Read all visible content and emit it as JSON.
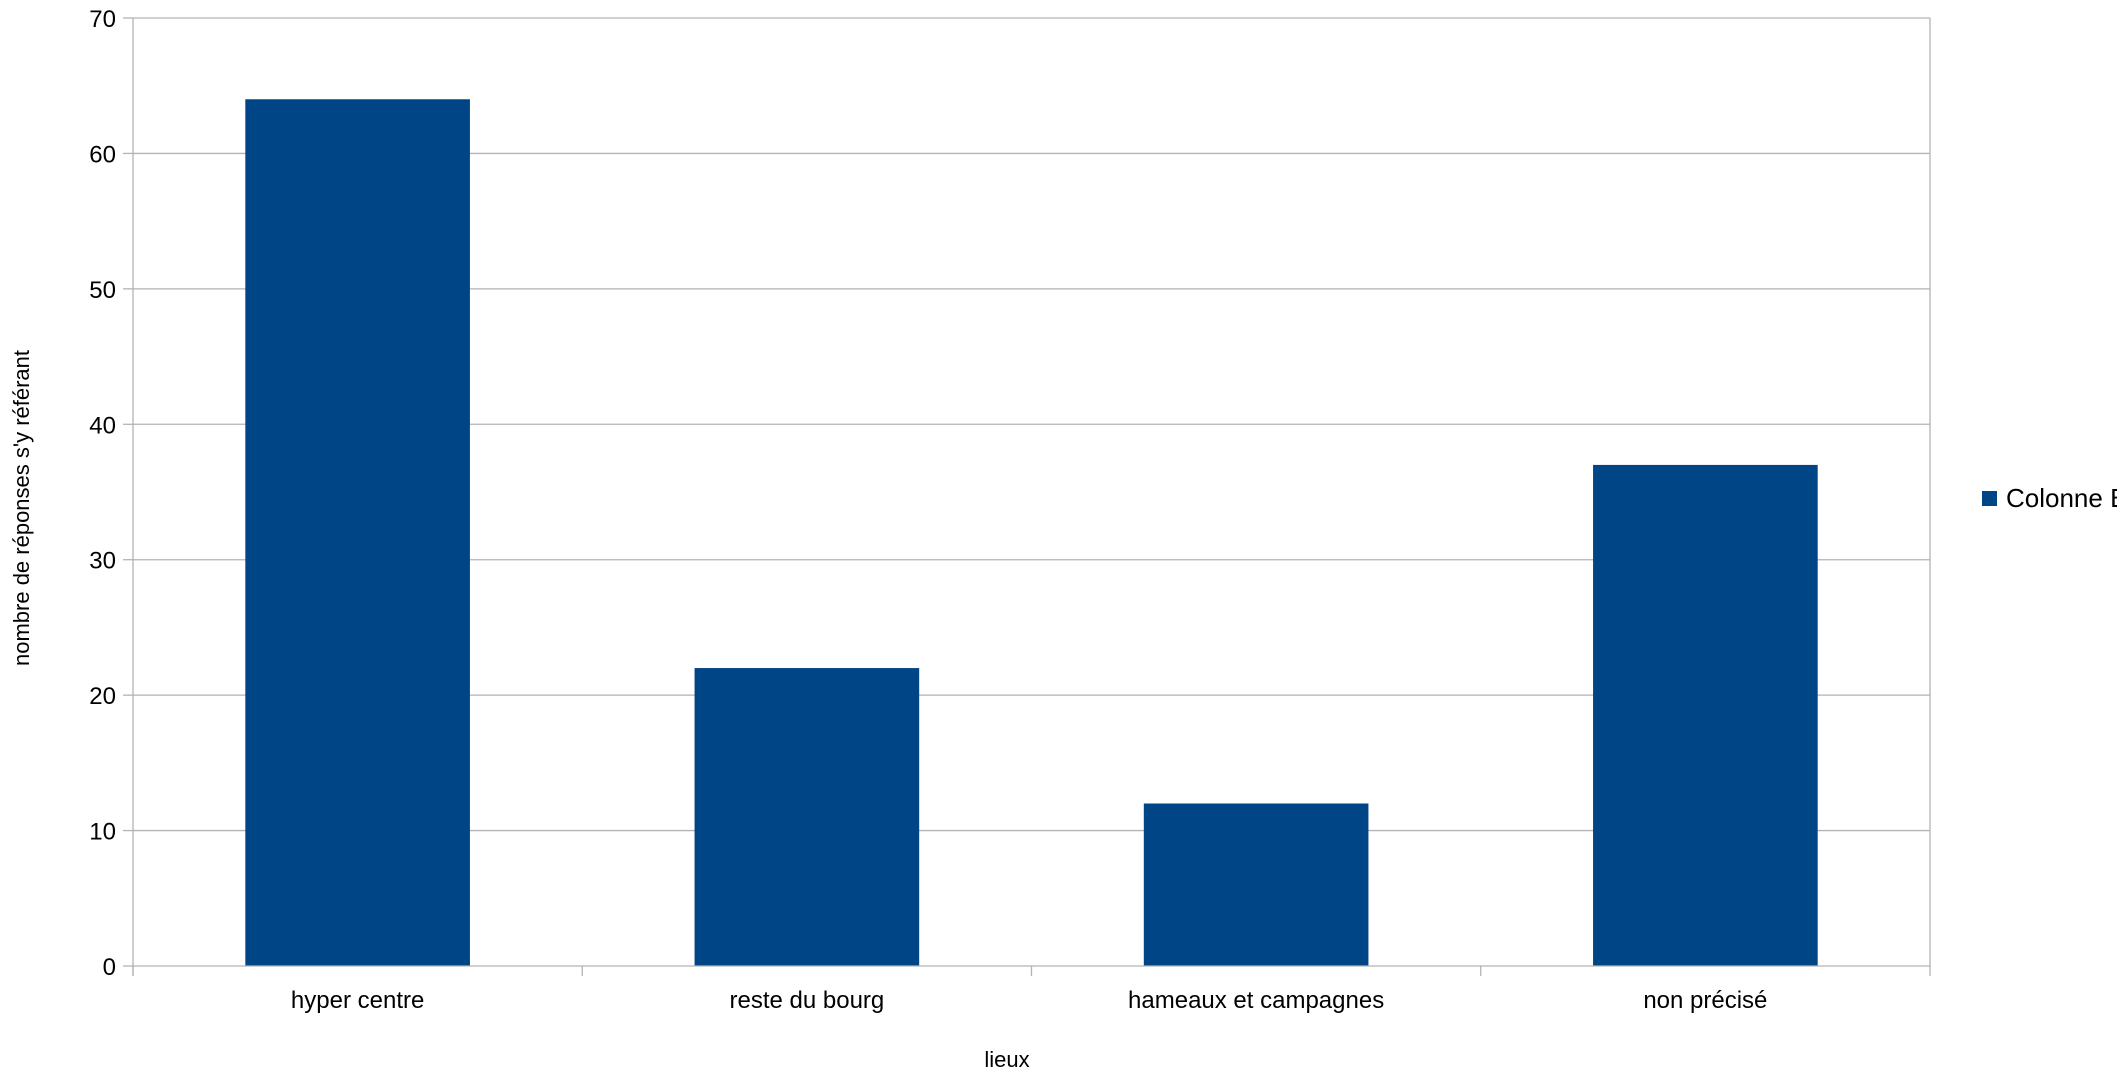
{
  "chart_data": {
    "type": "bar",
    "title": "",
    "xlabel": "lieux",
    "ylabel": "nombre de réponses s'y référant",
    "categories": [
      "hyper centre",
      "reste du bourg",
      "hameaux et campagnes",
      "non précisé"
    ],
    "series": [
      {
        "name": "Colonne B",
        "values": [
          64,
          22,
          12,
          37
        ],
        "color": "#004586"
      }
    ],
    "ylim": [
      0,
      70
    ],
    "yticks": [
      0,
      10,
      20,
      30,
      40,
      50,
      60,
      70
    ],
    "grid": true,
    "legend_position": "right",
    "colors": {
      "bar": "#004586",
      "grid": "#b3b3b3",
      "axis": "#b3b3b3",
      "text": "#000000"
    }
  }
}
